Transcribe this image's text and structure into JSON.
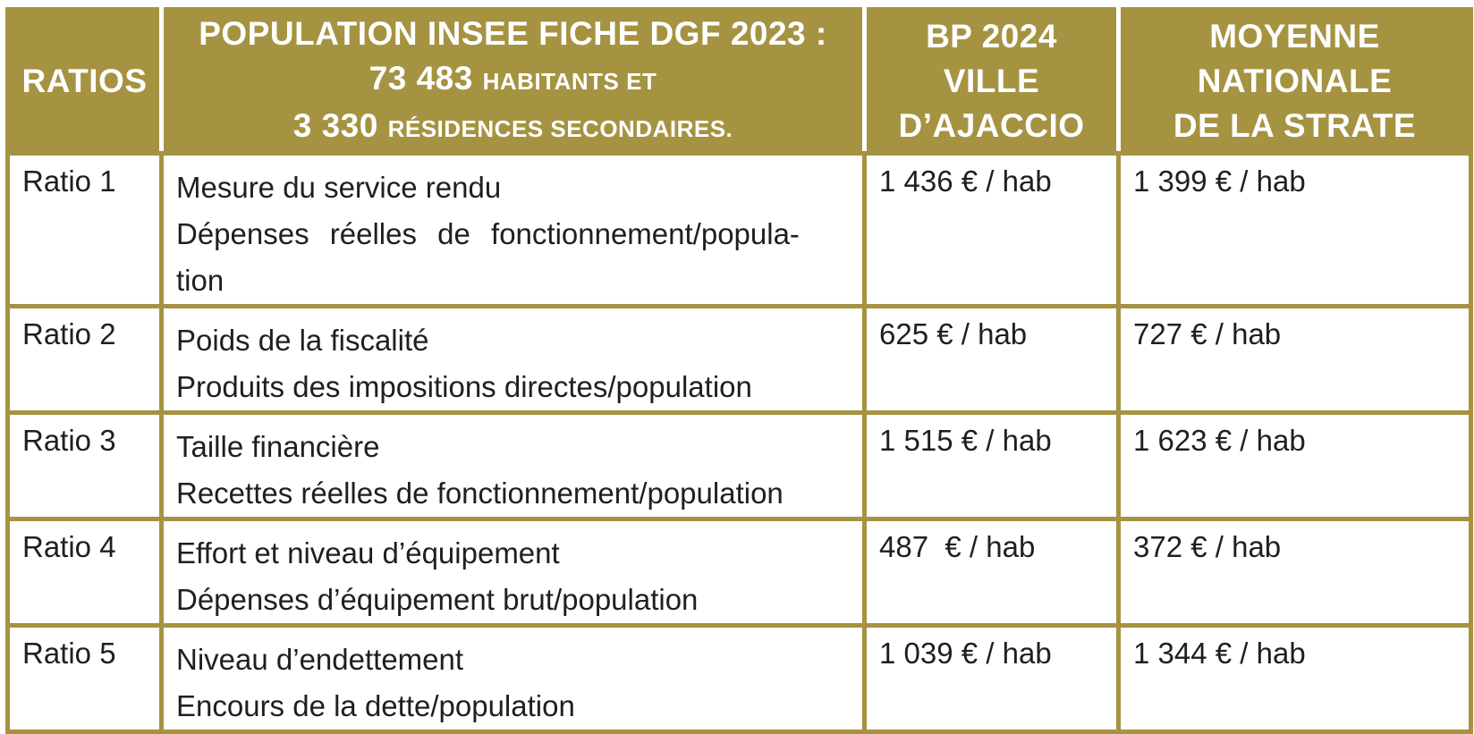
{
  "table": {
    "headers": {
      "ratios": "RATIOS",
      "population_line1": "POPULATION INSEE FICHE DGF 2023 :",
      "population_num1": "73 483",
      "population_txt1": "HABITANTS ET",
      "population_num2": "3 330",
      "population_txt2": "RÉSIDENCES SECONDAIRES.",
      "bp_line1": "BP 2024",
      "bp_line2": "VILLE",
      "bp_line3": "D’AJACCIO",
      "moy_line1": "MOYENNE",
      "moy_line2": "NATIONALE",
      "moy_line3": "DE LA STRATE"
    },
    "rows": [
      {
        "ratio": "Ratio 1",
        "title": "Mesure du service rendu",
        "description": "Dépenses réelles de fonctionnement/popula-",
        "description_cont": "tion",
        "ville": "1 436 € / hab",
        "moyenne": "1 399 € / hab"
      },
      {
        "ratio": "Ratio 2",
        "title": "Poids de la fiscalité",
        "description": "Produits des impositions directes/population",
        "ville": "625 € / hab",
        "moyenne": "727 € / hab"
      },
      {
        "ratio": "Ratio 3",
        "title": "Taille financière",
        "description": "Recettes réelles de fonctionnement/population",
        "ville": "1 515 € / hab",
        "moyenne": "1 623 € / hab"
      },
      {
        "ratio": "Ratio 4",
        "title": "Effort et niveau d’équipement",
        "description": "Dépenses d’équipement brut/population",
        "ville": "487  € / hab",
        "moyenne": "372 € / hab"
      },
      {
        "ratio": "Ratio 5",
        "title": "Niveau d’endettement",
        "description": "Encours de la dette/population",
        "ville": "1 039 € / hab",
        "moyenne": "1 344 € / hab"
      }
    ]
  }
}
